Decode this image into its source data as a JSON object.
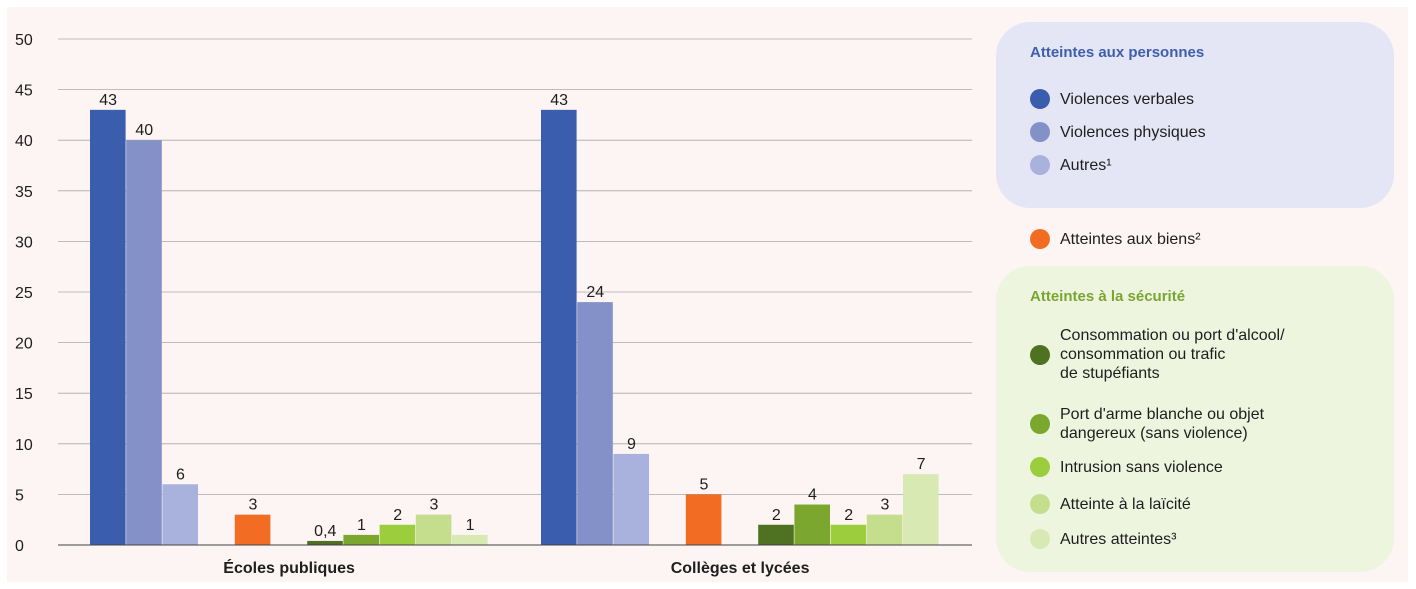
{
  "chart_data": {
    "type": "bar",
    "ylim": [
      0,
      50
    ],
    "yticks": [
      0,
      5,
      10,
      15,
      20,
      25,
      30,
      35,
      40,
      45,
      50
    ],
    "grid": true,
    "legend_position": "right",
    "categories": [
      "Écoles publiques",
      "Collèges et lycées"
    ],
    "series": [
      {
        "name": "Violences verbales",
        "color": "#3a5ead",
        "values": [
          43,
          43
        ]
      },
      {
        "name": "Violences physiques",
        "color": "#8391c8",
        "values": [
          40,
          24
        ]
      },
      {
        "name": "Autres¹",
        "color": "#a9b2dc",
        "values": [
          6,
          9
        ]
      },
      {
        "name": "Atteintes aux biens²",
        "color": "#f26c23",
        "values": [
          3,
          5
        ]
      },
      {
        "name": "Consommation ou port d'alcool/\nconsommation ou trafic\nde stupéfiants",
        "color": "#4e7122",
        "values": [
          0.4,
          2
        ]
      },
      {
        "name": "Port d'arme blanche ou objet\ndangereux (sans violence)",
        "color": "#7ba72f",
        "values": [
          1,
          4
        ]
      },
      {
        "name": "Intrusion sans violence",
        "color": "#9ccd3c",
        "values": [
          2,
          2
        ]
      },
      {
        "name": "Atteinte à la laïcité",
        "color": "#c4de8e",
        "values": [
          3,
          3
        ]
      },
      {
        "name": "Autres atteintes³",
        "color": "#d8e9b4",
        "values": [
          1,
          7
        ]
      }
    ],
    "bar_value_labels": [
      [
        "43",
        "40",
        "6",
        "3",
        "0,4",
        "1",
        "2",
        "3",
        "1"
      ],
      [
        "43",
        "24",
        "9",
        "5",
        "2",
        "4",
        "2",
        "3",
        "7"
      ]
    ]
  },
  "legend": {
    "group_personnes_title": "Atteintes aux personnes",
    "group_personnes_color": "#3f5ead",
    "group_securite_title": "Atteintes à la sécurité",
    "group_securite_color": "#7aa533"
  }
}
